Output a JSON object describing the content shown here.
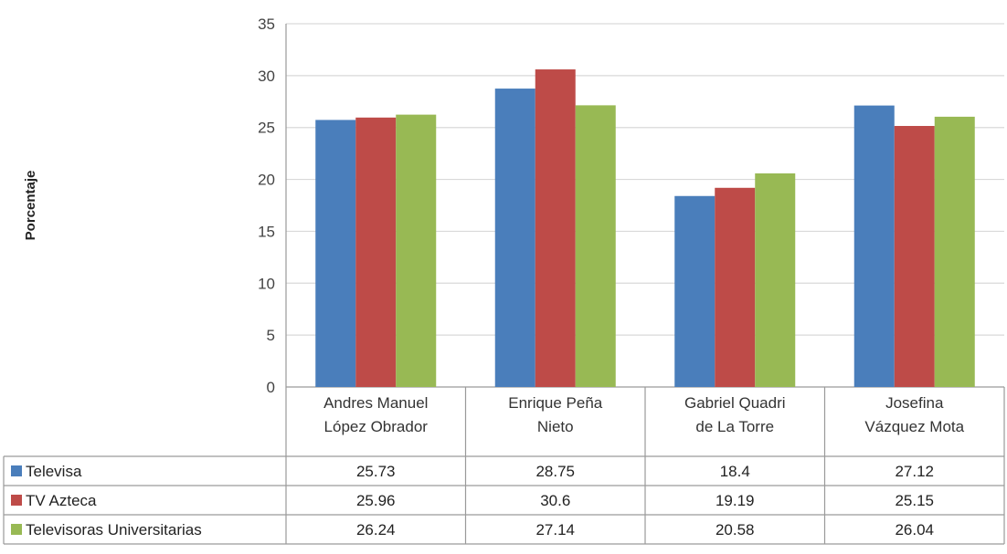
{
  "chart_data": {
    "type": "bar",
    "title": "",
    "xlabel": "",
    "ylabel": "Porcentaje",
    "ylim": [
      0,
      35
    ],
    "yticks": [
      0,
      5,
      10,
      15,
      20,
      25,
      30,
      35
    ],
    "grid": true,
    "legend": "data-table",
    "categories": [
      [
        "Andres Manuel",
        "López Obrador"
      ],
      [
        "Enrique Peña",
        "Nieto"
      ],
      [
        "Gabriel Quadri",
        "de La Torre"
      ],
      [
        "Josefina",
        "Vázquez Mota"
      ]
    ],
    "series": [
      {
        "name": "Televisa",
        "color": "#4a7ebb",
        "values": [
          25.73,
          28.75,
          18.4,
          27.12
        ],
        "labels": [
          "25.73",
          "28.75",
          "18.4",
          "27.12"
        ]
      },
      {
        "name": "TV Azteca",
        "color": "#be4b48",
        "values": [
          25.96,
          30.6,
          19.19,
          25.15
        ],
        "labels": [
          "25.96",
          "30.6",
          "19.19",
          "25.15"
        ]
      },
      {
        "name": "Televisoras Universitarias",
        "color": "#98b954",
        "values": [
          26.24,
          27.14,
          20.58,
          26.04
        ],
        "labels": [
          "26.24",
          "27.14",
          "20.58",
          "26.04"
        ]
      }
    ]
  }
}
